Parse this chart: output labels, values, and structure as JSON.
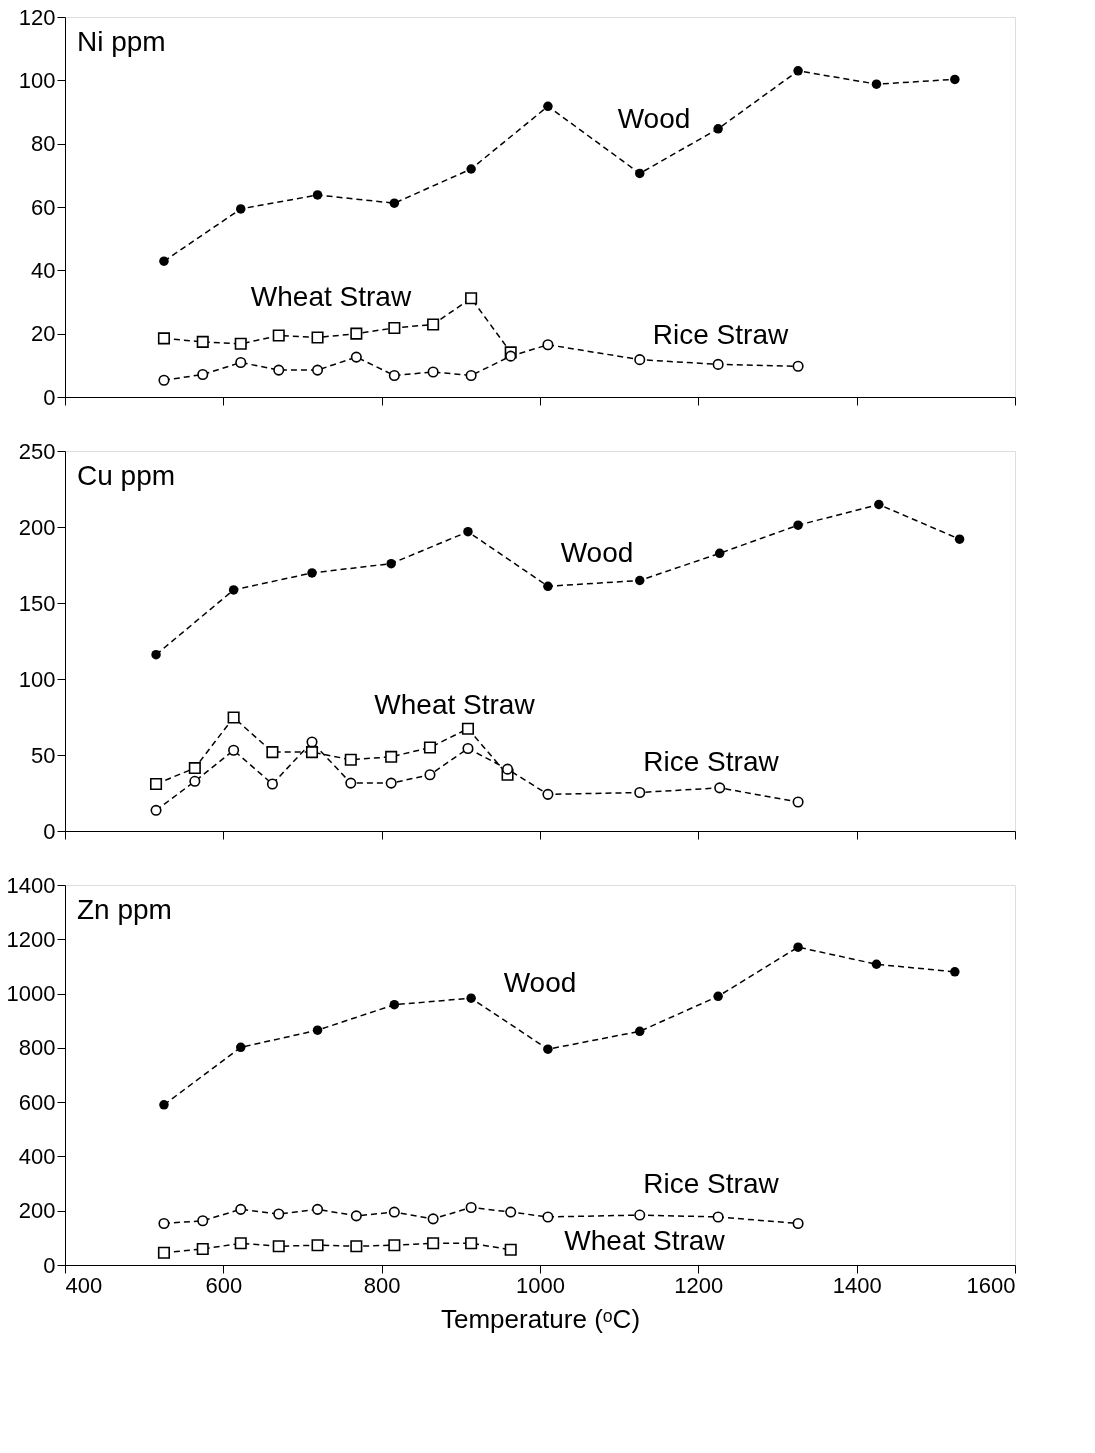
{
  "chart_data": [
    {
      "type": "line",
      "title": "Ni ppm",
      "xlim": [
        400,
        1600
      ],
      "xticks": [
        400,
        600,
        800,
        1000,
        1200,
        1400,
        1600
      ],
      "ylim": [
        0,
        120
      ],
      "yticks": [
        0,
        20,
        40,
        60,
        80,
        100,
        120
      ],
      "tick_labels": "y",
      "grid": false,
      "line_style": "dashed",
      "series": [
        {
          "color": "#000000",
          "marker": "circle",
          "x": [
            525,
            622,
            719,
            816,
            913,
            1010,
            1126,
            1225,
            1326,
            1425,
            1524
          ],
          "values": [
            42.9,
            59.4,
            63.8,
            61.2,
            72,
            91.8,
            70.6,
            84.7,
            103,
            98.8,
            100.3
          ]
        },
        {
          "color": "#000000",
          "marker": "square",
          "x": [
            525,
            574,
            622,
            670,
            719,
            768,
            816,
            865,
            913,
            963
          ],
          "values": [
            18.5,
            17.4,
            16.8,
            19.4,
            18.8,
            20,
            21.8,
            22.9,
            31.2,
            14.1
          ]
        },
        {
          "color": "#000000",
          "marker": "circle",
          "x": [
            525,
            574,
            622,
            670,
            719,
            768,
            816,
            865,
            913,
            963,
            1010,
            1126,
            1225,
            1326
          ],
          "values": [
            5.3,
            7.1,
            10.9,
            8.5,
            8.5,
            12.6,
            6.8,
            7.9,
            6.8,
            12.9,
            16.5,
            11.8,
            10.3,
            9.7
          ]
        }
      ],
      "annotations": [
        "Wood",
        "Wheat Straw",
        "Rice Straw"
      ]
    },
    {
      "type": "line",
      "title": "Cu ppm",
      "xlim": [
        400,
        1600
      ],
      "xticks": [
        400,
        600,
        800,
        1000,
        1200,
        1400,
        1600
      ],
      "ylim": [
        0,
        250
      ],
      "yticks": [
        0,
        50,
        100,
        150,
        200,
        250
      ],
      "tick_labels": "y",
      "grid": false,
      "line_style": "dashed",
      "series": [
        {
          "color": "#000000",
          "marker": "circle",
          "x": [
            515,
            613,
            712,
            812,
            909,
            1010,
            1126,
            1227,
            1326,
            1428,
            1530
          ],
          "values": [
            116,
            158.6,
            169.8,
            175.9,
            196.9,
            161,
            164.8,
            182.7,
            201.2,
            214.8,
            192
          ]
        },
        {
          "color": "#000000",
          "marker": "square",
          "x": [
            515,
            564,
            613,
            662,
            712,
            761,
            812,
            861,
            909,
            959
          ],
          "values": [
            30.9,
            41.4,
            74.7,
            51.9,
            51.9,
            46.9,
            48.8,
            54.9,
            67.3,
            37
          ]
        },
        {
          "color": "#000000",
          "marker": "circle",
          "x": [
            515,
            564,
            613,
            662,
            712,
            761,
            812,
            861,
            909,
            959,
            1010,
            1126,
            1227,
            1326
          ],
          "values": [
            13.6,
            32.7,
            53.1,
            30.9,
            58.6,
            31.5,
            31.5,
            37,
            54.3,
            40.7,
            24.1,
            25.3,
            28.4,
            19.1
          ]
        }
      ],
      "annotations": [
        "Wood",
        "Wheat Straw",
        "Rice Straw"
      ]
    },
    {
      "type": "line",
      "title": "Zn ppm",
      "xlabel": "Temperature (ᵒC)",
      "xlim": [
        400,
        1600
      ],
      "xticks": [
        400,
        600,
        800,
        1000,
        1200,
        1400,
        1600
      ],
      "ylim": [
        0,
        1400
      ],
      "yticks": [
        0,
        200,
        400,
        600,
        800,
        1000,
        1200,
        1400
      ],
      "grid": false,
      "line_style": "dashed",
      "series": [
        {
          "color": "#000000",
          "marker": "circle",
          "x": [
            525,
            622,
            719,
            816,
            913,
            1010,
            1126,
            1225,
            1326,
            1425,
            1524
          ],
          "values": [
            590,
            802,
            865,
            959,
            983,
            795,
            861,
            990,
            1171,
            1108,
            1080
          ]
        },
        {
          "color": "#000000",
          "marker": "circle",
          "x": [
            525,
            574,
            622,
            670,
            719,
            768,
            816,
            865,
            913,
            963,
            1010,
            1126,
            1225,
            1326
          ],
          "values": [
            153,
            163,
            205,
            188,
            205,
            181,
            195,
            170,
            212,
            195,
            177,
            184,
            177,
            153
          ]
        },
        {
          "color": "#000000",
          "marker": "square",
          "x": [
            525,
            574,
            622,
            670,
            719,
            768,
            816,
            865,
            913,
            963
          ],
          "values": [
            45,
            59,
            80,
            69,
            73,
            69,
            73,
            80,
            80,
            56
          ]
        }
      ],
      "annotations": [
        "Wood",
        "Rice Straw",
        "Wheat Straw"
      ]
    }
  ]
}
